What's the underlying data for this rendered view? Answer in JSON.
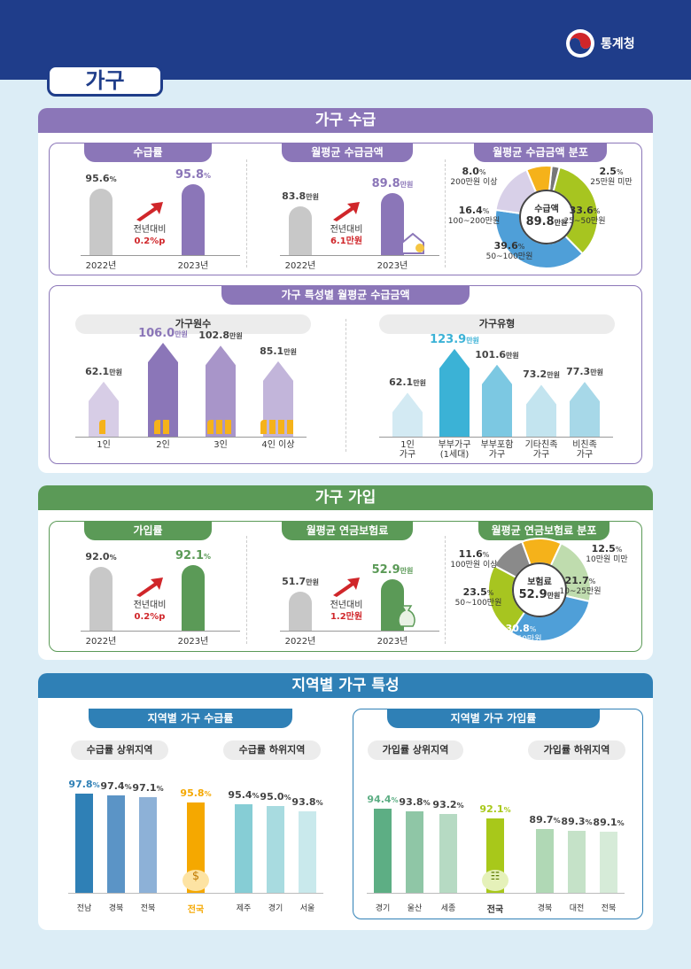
{
  "header": {
    "tab": "가구",
    "org": "통계청"
  },
  "colors": {
    "purple": "#8b76b8",
    "green": "#5b9a57",
    "blue": "#2f80b6",
    "red": "#d0262a"
  },
  "s1": {
    "title": "가구 수급",
    "rate": {
      "title": "수급률",
      "y2022": "95.6",
      "y2023": "95.8",
      "unit": "%",
      "x2022": "2022년",
      "x2023": "2023년",
      "cmp": "전년대비",
      "diff": "0.2%p"
    },
    "amount": {
      "title": "월평균 수급금액",
      "y2022": "83.8",
      "y2023": "89.8",
      "unit": "만원",
      "x2022": "2022년",
      "x2023": "2023년",
      "cmp": "전년대비",
      "diff": "6.1만원"
    },
    "dist": {
      "title": "월평균 수급금액 분포",
      "center_label": "수급액",
      "center_value": "89.8",
      "center_unit": "만원"
    },
    "char": {
      "title": "가구 특성별 월평균 수급금액",
      "size_title": "가구원수",
      "type_title": "가구유형"
    }
  },
  "s2": {
    "title": "가구 가입",
    "rate": {
      "title": "가입률",
      "y2022": "92.0",
      "y2023": "92.1",
      "unit": "%",
      "x2022": "2022년",
      "x2023": "2023년",
      "cmp": "전년대비",
      "diff": "0.2%p"
    },
    "amount": {
      "title": "월평균 연금보험료",
      "y2022": "51.7",
      "y2023": "52.9",
      "unit": "만원",
      "x2022": "2022년",
      "x2023": "2023년",
      "cmp": "전년대비",
      "diff": "1.2만원"
    },
    "dist": {
      "title": "월평균 연금보험료 분포",
      "center_label": "보험료",
      "center_value": "52.9",
      "center_unit": "만원"
    }
  },
  "s3": {
    "title": "지역별 가구 특성",
    "left_title": "지역별 가구 수급률",
    "right_title": "지역별 가구 가입률",
    "left_top": "수급률 상위지역",
    "left_bottom": "수급률 하위지역",
    "right_top": "가입률 상위지역",
    "right_bottom": "가입률 하위지역"
  },
  "chart_data": [
    {
      "type": "bar",
      "id": "receipt-rate",
      "categories": [
        "2022년",
        "2023년"
      ],
      "values": [
        95.6,
        95.8
      ],
      "unit": "%"
    },
    {
      "type": "bar",
      "id": "receipt-amount",
      "categories": [
        "2022년",
        "2023년"
      ],
      "values": [
        83.8,
        89.8
      ],
      "unit": "만원"
    },
    {
      "type": "pie",
      "id": "receipt-dist",
      "categories": [
        "25만원 미만",
        "25~50만원",
        "50~100만원",
        "100~200만원",
        "200만원 이상"
      ],
      "values": [
        2.5,
        33.6,
        39.6,
        16.4,
        8.0
      ],
      "unit": "%",
      "colors": [
        "#777777",
        "#a7c520",
        "#4f9fd8",
        "#d8d0e8",
        "#f5b21a"
      ]
    },
    {
      "type": "bar",
      "id": "by-size",
      "categories": [
        "1인",
        "2인",
        "3인",
        "4인 이상"
      ],
      "values": [
        62.1,
        106.0,
        102.8,
        85.1
      ],
      "unit": "만원",
      "colors": [
        "#d7cde6",
        "#8b76b8",
        "#a895c9",
        "#c2b5da"
      ]
    },
    {
      "type": "bar",
      "id": "by-type",
      "categories": [
        "1인\n가구",
        "부부가구\n(1세대)",
        "부부포함\n가구",
        "기타친족\n가구",
        "비친족\n가구"
      ],
      "values": [
        62.1,
        123.9,
        101.6,
        73.2,
        77.3
      ],
      "unit": "만원",
      "colors": [
        "#d3eaf3",
        "#3bb2d6",
        "#7cc8e2",
        "#c3e4ef",
        "#a7d8e8"
      ]
    },
    {
      "type": "bar",
      "id": "join-rate",
      "categories": [
        "2022년",
        "2023년"
      ],
      "values": [
        92.0,
        92.1
      ],
      "unit": "%"
    },
    {
      "type": "bar",
      "id": "join-amount",
      "categories": [
        "2022년",
        "2023년"
      ],
      "values": [
        51.7,
        52.9
      ],
      "unit": "만원"
    },
    {
      "type": "pie",
      "id": "premium-dist",
      "categories": [
        "10만원 미만",
        "10~25만원",
        "25~50만원",
        "50~100만원",
        "100만원 이상"
      ],
      "values": [
        12.5,
        21.7,
        30.8,
        23.5,
        11.6
      ],
      "unit": "%",
      "colors": [
        "#f5b21a",
        "#bfdcae",
        "#4f9fd8",
        "#a7c520",
        "#8a8a8a"
      ]
    },
    {
      "type": "bar",
      "id": "region-receipt",
      "categories": [
        "전남",
        "경북",
        "전북",
        "전국",
        "제주",
        "경기",
        "서울"
      ],
      "values": [
        97.8,
        97.4,
        97.1,
        95.8,
        95.4,
        95.0,
        93.8
      ],
      "unit": "%",
      "colors": [
        "#2f80b6",
        "#5b94c6",
        "#8db1d7",
        "#f5a800",
        "#86cdd5",
        "#a8dbe0",
        "#c9e9ec"
      ]
    },
    {
      "type": "bar",
      "id": "region-join",
      "categories": [
        "경기",
        "울산",
        "세종",
        "전국",
        "경북",
        "대전",
        "전북"
      ],
      "values": [
        94.4,
        93.8,
        93.2,
        92.1,
        89.7,
        89.3,
        89.1
      ],
      "unit": "%",
      "colors": [
        "#5dae84",
        "#8fc6a6",
        "#b6dac3",
        "#a8c81a",
        "#b0d8b5",
        "#c5e2c8",
        "#d6ebd8"
      ]
    }
  ]
}
